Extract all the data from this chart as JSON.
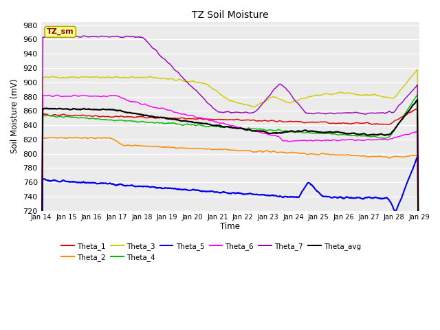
{
  "title": "TZ Soil Moisture",
  "xlabel": "Time",
  "ylabel": "Soil Moisture (mV)",
  "ylim": [
    720,
    985
  ],
  "yticks": [
    720,
    740,
    760,
    780,
    800,
    820,
    840,
    860,
    880,
    900,
    920,
    940,
    960,
    980
  ],
  "date_labels": [
    "Jan 14",
    "Jan 15",
    "Jan 16",
    "Jan 17",
    "Jan 18",
    "Jan 19",
    "Jan 20",
    "Jan 21",
    "Jan 22",
    "Jan 23",
    "Jan 24",
    "Jan 25",
    "Jan 26",
    "Jan 27",
    "Jan 28",
    "Jan 29"
  ],
  "n_points": 1500,
  "colors": {
    "Theta_1": "#dd0000",
    "Theta_2": "#ff8800",
    "Theta_3": "#cccc00",
    "Theta_4": "#00bb00",
    "Theta_5": "#0000ee",
    "Theta_6": "#ff00ff",
    "Theta_7": "#9900bb",
    "Theta_avg": "#000000"
  },
  "legend_label": "TZ_sm",
  "bg_color": "#f0f0f0"
}
